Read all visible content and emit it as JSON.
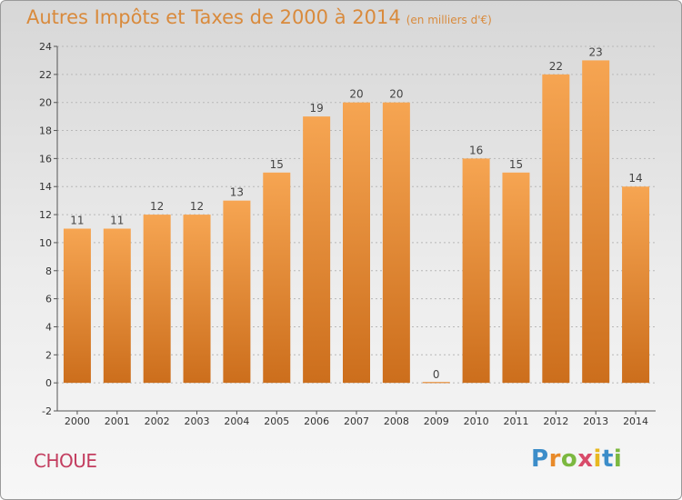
{
  "header": {
    "title": "Autres Impôts et Taxes de 2000 à 2014",
    "unit": "(en milliers d'€)"
  },
  "footer": {
    "commune": "CHOUE",
    "logo_text": "Proxiti"
  },
  "colors": {
    "bar_light": "#f6a552",
    "bar_dark": "#cc6e1c",
    "title": "#d98a3c",
    "commune": "#c33d5f"
  },
  "chart_data": {
    "type": "bar",
    "title": "Autres Impôts et Taxes de 2000 à 2014",
    "subtitle": "(en milliers d'€)",
    "categories": [
      "2000",
      "2001",
      "2002",
      "2003",
      "2004",
      "2005",
      "2006",
      "2007",
      "2008",
      "2009",
      "2010",
      "2011",
      "2012",
      "2013",
      "2014"
    ],
    "values": [
      11,
      11,
      12,
      12,
      13,
      15,
      19,
      20,
      20,
      0,
      16,
      15,
      22,
      23,
      14
    ],
    "xlabel": "",
    "ylabel": "",
    "ylim": [
      -2,
      24
    ],
    "yticks": [
      -2,
      0,
      2,
      4,
      6,
      8,
      10,
      12,
      14,
      16,
      18,
      20,
      22,
      24
    ],
    "grid": true,
    "legend": "none"
  }
}
